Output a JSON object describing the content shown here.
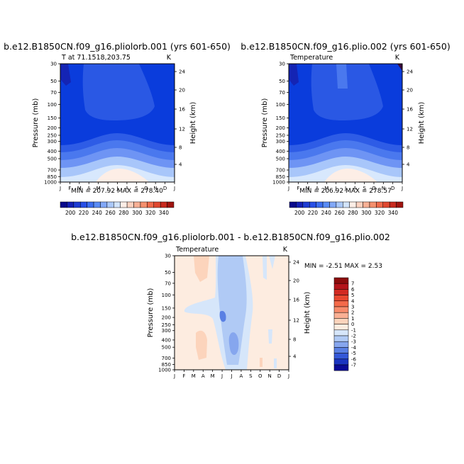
{
  "chart_data": [
    {
      "type": "heatmap",
      "title": "b.e12.B1850CN.f09_g16.pliolorb.001 (yrs 601-650)",
      "subtitle_left": "T at 71.1518,203.75",
      "units": "K",
      "ylabel": "Pressure (mb)",
      "ylabel_right": "Height (km)",
      "x_ticks": [
        "J",
        "F",
        "M",
        "A",
        "M",
        "J",
        "J",
        "A",
        "S",
        "O",
        "N",
        "D",
        "J"
      ],
      "y_ticks": [
        "30",
        "50",
        "70",
        "100",
        "150",
        "200",
        "250",
        "300",
        "400",
        "500",
        "700",
        "850",
        "1000"
      ],
      "y_ticks_right": [
        "24",
        "20",
        "16",
        "12",
        "8",
        "4"
      ],
      "stats": "MIN = 207.92 MAX = 278.40",
      "colorbar_labels": [
        "200",
        "220",
        "240",
        "260",
        "280",
        "300",
        "320",
        "340"
      ],
      "colorbar_colors": [
        "#0a0a8c",
        "#1420b4",
        "#1e3cd2",
        "#2850e6",
        "#3c6ef0",
        "#5a8cf5",
        "#82a8f8",
        "#aac8fa",
        "#d2e4fc",
        "#fdeee6",
        "#fcd2c0",
        "#f8b095",
        "#f5906e",
        "#f06a4b",
        "#e04830",
        "#c82a1e",
        "#a0140f"
      ],
      "min": 207.92,
      "max": 278.4
    },
    {
      "type": "heatmap",
      "title": "b.e12.B1850CN.f09_g16.plio.002 (yrs 601-650)",
      "subtitle_left": "Temperature",
      "units": "K",
      "ylabel": "Pressure (mb)",
      "ylabel_right": "Height (km)",
      "x_ticks": [
        "J",
        "F",
        "M",
        "A",
        "M",
        "J",
        "J",
        "A",
        "S",
        "O",
        "N",
        "D",
        "J"
      ],
      "y_ticks": [
        "30",
        "50",
        "70",
        "100",
        "150",
        "200",
        "250",
        "300",
        "400",
        "500",
        "700",
        "850",
        "1000"
      ],
      "y_ticks_right": [
        "24",
        "20",
        "16",
        "12",
        "8",
        "4"
      ],
      "stats": "MIN = 206.92 MAX = 278.57",
      "colorbar_labels": [
        "200",
        "220",
        "240",
        "260",
        "280",
        "300",
        "320",
        "340"
      ],
      "min": 206.92,
      "max": 278.57
    },
    {
      "type": "heatmap",
      "title": "b.e12.B1850CN.f09_g16.pliolorb.001 - b.e12.B1850CN.f09_g16.plio.002",
      "subtitle_left": "Temperature",
      "units": "K",
      "ylabel": "Pressure (mb)",
      "ylabel_right": "Height (km)",
      "x_ticks": [
        "J",
        "F",
        "M",
        "A",
        "M",
        "J",
        "J",
        "A",
        "S",
        "O",
        "N",
        "D",
        "J"
      ],
      "y_ticks": [
        "30",
        "50",
        "70",
        "100",
        "150",
        "200",
        "250",
        "300",
        "400",
        "500",
        "700",
        "850",
        "1000"
      ],
      "y_ticks_right": [
        "24",
        "20",
        "16",
        "12",
        "8",
        "4"
      ],
      "stats": "MIN = -2.51 MAX = 2.53",
      "colorbar_labels": [
        "7",
        "6",
        "5",
        "4",
        "3",
        "2",
        "1",
        "0",
        "-1",
        "-2",
        "-3",
        "-4",
        "-5",
        "-6",
        "-7"
      ],
      "colorbar_colors": [
        "#8c0c0c",
        "#b4141a",
        "#d22a22",
        "#e84830",
        "#f46a4a",
        "#f88c6c",
        "#fab094",
        "#fcd4bc",
        "#fdece0",
        "#d6e6fa",
        "#b0caf5",
        "#86a6ee",
        "#5a80e4",
        "#3458d8",
        "#1a34c0",
        "#0a0a96"
      ],
      "min": -2.51,
      "max": 2.53
    }
  ]
}
